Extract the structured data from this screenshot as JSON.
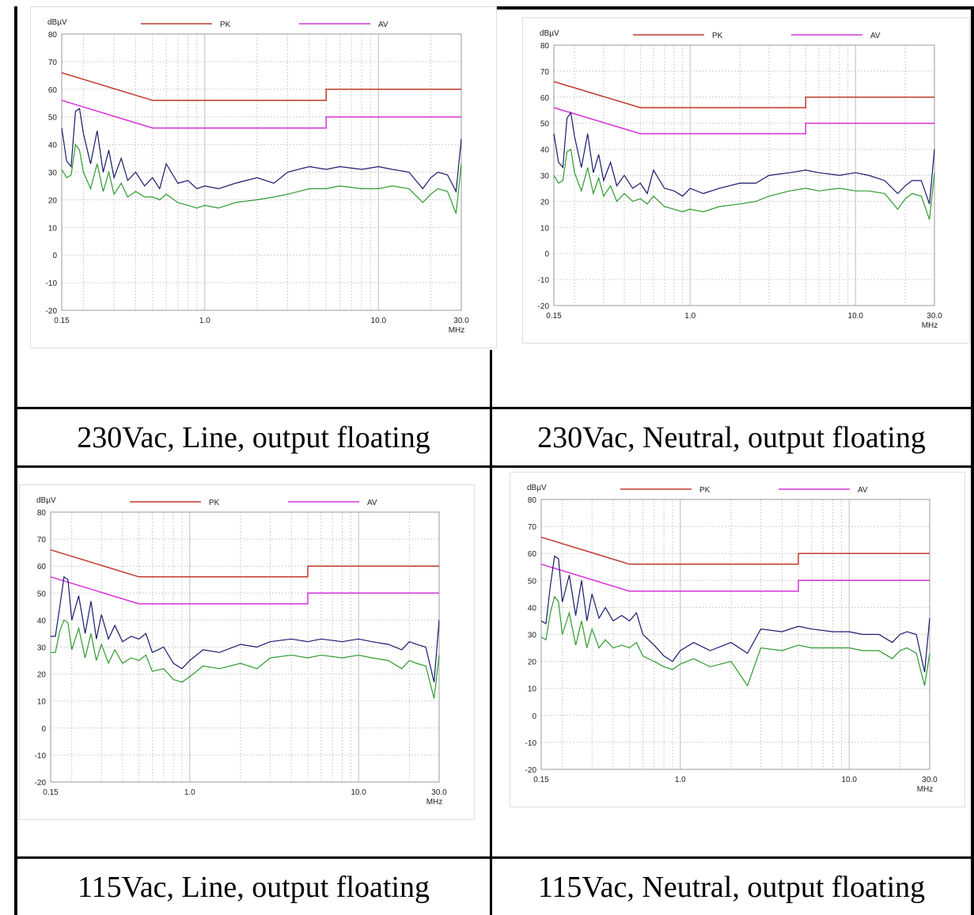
{
  "captions": [
    "230Vac, Line, output floating",
    "230Vac, Neutral, output floating",
    "115Vac, Line, output floating",
    "115Vac, Neutral, output floating"
  ],
  "colors": {
    "pk": "#c0392b",
    "av": "#d633d6",
    "peak_trace": "#1a1a6e",
    "avg_trace": "#2e9a2e",
    "grid": "#cfcfcf"
  },
  "chart_data": [
    {
      "type": "line",
      "caption": "230Vac, Line, output floating",
      "ylabel": "dBµV",
      "xlabel": "MHz",
      "xscale": "log",
      "xlim": [
        0.15,
        30.0
      ],
      "ylim": [
        -20,
        80
      ],
      "yticks": [
        "80",
        "70",
        "60",
        "50",
        "40",
        "30",
        "20",
        "10",
        "0",
        "-10",
        "-20"
      ],
      "xticks": [
        "0.15",
        "1.0",
        "10.0",
        "30.0"
      ],
      "legend": [
        "PK",
        "AV"
      ],
      "series": [
        {
          "name": "PK",
          "x": [
            0.15,
            0.5,
            0.5,
            5,
            5,
            30
          ],
          "y": [
            66,
            56,
            56,
            56,
            60,
            60
          ]
        },
        {
          "name": "AV",
          "x": [
            0.15,
            0.5,
            0.5,
            5,
            5,
            30
          ],
          "y": [
            56,
            46,
            46,
            46,
            50,
            50
          ]
        },
        {
          "name": "",
          "x": [
            0.15,
            0.16,
            0.17,
            0.18,
            0.19,
            0.2,
            0.22,
            0.24,
            0.26,
            0.28,
            0.3,
            0.33,
            0.36,
            0.4,
            0.45,
            0.5,
            0.55,
            0.6,
            0.7,
            0.8,
            0.9,
            1.0,
            1.2,
            1.5,
            2.0,
            2.5,
            3.0,
            4.0,
            5.0,
            6.0,
            8.0,
            10.0,
            12.0,
            15.0,
            18.0,
            20.0,
            22.0,
            25.0,
            28.0,
            30.0
          ],
          "y": [
            46,
            34,
            32,
            52,
            53,
            44,
            33,
            45,
            30,
            38,
            28,
            35,
            27,
            30,
            25,
            28,
            24,
            33,
            26,
            27,
            24,
            25,
            24,
            26,
            28,
            26,
            30,
            32,
            31,
            32,
            31,
            32,
            31,
            30,
            24,
            28,
            30,
            29,
            23,
            42
          ]
        },
        {
          "name": "",
          "x": [
            0.15,
            0.16,
            0.17,
            0.18,
            0.19,
            0.2,
            0.22,
            0.24,
            0.26,
            0.28,
            0.3,
            0.33,
            0.36,
            0.4,
            0.45,
            0.5,
            0.55,
            0.6,
            0.7,
            0.8,
            0.9,
            1.0,
            1.2,
            1.5,
            2.0,
            2.5,
            3.0,
            4.0,
            5.0,
            6.0,
            8.0,
            10.0,
            12.0,
            15.0,
            18.0,
            20.0,
            22.0,
            25.0,
            28.0,
            30.0
          ],
          "y": [
            31,
            28,
            29,
            40,
            38,
            30,
            24,
            33,
            23,
            30,
            22,
            26,
            21,
            23,
            21,
            21,
            20,
            22,
            19,
            18,
            17,
            18,
            17,
            19,
            20,
            21,
            22,
            24,
            24,
            25,
            24,
            24,
            25,
            24,
            19,
            22,
            24,
            23,
            15,
            33
          ]
        }
      ]
    },
    {
      "type": "line",
      "caption": "230Vac, Neutral, output floating",
      "ylabel": "dBµV",
      "xlabel": "MHz",
      "xscale": "log",
      "xlim": [
        0.15,
        30.0
      ],
      "ylim": [
        -20,
        80
      ],
      "yticks": [
        "80",
        "70",
        "60",
        "50",
        "40",
        "30",
        "20",
        "10",
        "0",
        "-10",
        "-20"
      ],
      "xticks": [
        "0.15",
        "1.0",
        "10.0",
        "30.0"
      ],
      "legend": [
        "PK",
        "AV"
      ],
      "series": [
        {
          "name": "PK",
          "x": [
            0.15,
            0.5,
            0.5,
            5,
            5,
            30
          ],
          "y": [
            66,
            56,
            56,
            56,
            60,
            60
          ]
        },
        {
          "name": "AV",
          "x": [
            0.15,
            0.5,
            0.5,
            5,
            5,
            30
          ],
          "y": [
            56,
            46,
            46,
            46,
            50,
            50
          ]
        },
        {
          "name": "",
          "x": [
            0.15,
            0.16,
            0.17,
            0.18,
            0.19,
            0.2,
            0.22,
            0.24,
            0.26,
            0.28,
            0.3,
            0.33,
            0.36,
            0.4,
            0.45,
            0.5,
            0.55,
            0.6,
            0.7,
            0.8,
            0.9,
            1.0,
            1.2,
            1.5,
            2.0,
            2.5,
            3.0,
            4.0,
            5.0,
            6.0,
            8.0,
            10.0,
            12.0,
            15.0,
            18.0,
            20.0,
            22.0,
            25.0,
            28.0,
            30.0
          ],
          "y": [
            46,
            35,
            33,
            52,
            54,
            45,
            33,
            46,
            31,
            38,
            28,
            35,
            26,
            30,
            25,
            27,
            23,
            32,
            25,
            24,
            22,
            25,
            23,
            25,
            27,
            27,
            30,
            31,
            32,
            31,
            30,
            31,
            30,
            28,
            23,
            26,
            28,
            28,
            19,
            40
          ]
        },
        {
          "name": "",
          "x": [
            0.15,
            0.16,
            0.17,
            0.18,
            0.19,
            0.2,
            0.22,
            0.24,
            0.26,
            0.28,
            0.3,
            0.33,
            0.36,
            0.4,
            0.45,
            0.5,
            0.55,
            0.6,
            0.7,
            0.8,
            0.9,
            1.0,
            1.2,
            1.5,
            2.0,
            2.5,
            3.0,
            4.0,
            5.0,
            6.0,
            8.0,
            10.0,
            12.0,
            15.0,
            18.0,
            20.0,
            22.0,
            25.0,
            28.0,
            30.0
          ],
          "y": [
            30,
            27,
            28,
            39,
            40,
            31,
            24,
            33,
            23,
            29,
            22,
            26,
            20,
            23,
            20,
            21,
            19,
            22,
            18,
            17,
            16,
            17,
            16,
            18,
            19,
            20,
            22,
            24,
            25,
            24,
            25,
            24,
            24,
            23,
            17,
            21,
            23,
            22,
            13,
            31
          ]
        }
      ]
    },
    {
      "type": "line",
      "caption": "115Vac, Line, output floating",
      "ylabel": "dBµV",
      "xlabel": "MHz",
      "xscale": "log",
      "xlim": [
        0.15,
        30.0
      ],
      "ylim": [
        -20,
        80
      ],
      "yticks": [
        "80",
        "70",
        "60",
        "50",
        "40",
        "30",
        "20",
        "10",
        "0",
        "-10",
        "-20"
      ],
      "xticks": [
        "0.15",
        "1.0",
        "10.0",
        "30.0"
      ],
      "legend": [
        "PK",
        "AV"
      ],
      "series": [
        {
          "name": "PK",
          "x": [
            0.15,
            0.5,
            0.5,
            5,
            5,
            30
          ],
          "y": [
            66,
            56,
            56,
            56,
            60,
            60
          ]
        },
        {
          "name": "AV",
          "x": [
            0.15,
            0.5,
            0.5,
            5,
            5,
            30
          ],
          "y": [
            56,
            46,
            46,
            46,
            50,
            50
          ]
        },
        {
          "name": "",
          "x": [
            0.15,
            0.16,
            0.17,
            0.18,
            0.19,
            0.2,
            0.22,
            0.24,
            0.26,
            0.28,
            0.3,
            0.33,
            0.36,
            0.4,
            0.45,
            0.5,
            0.55,
            0.6,
            0.7,
            0.8,
            0.9,
            1.0,
            1.2,
            1.5,
            2.0,
            2.5,
            3.0,
            4.0,
            5.0,
            6.0,
            8.0,
            10.0,
            12.0,
            15.0,
            18.0,
            20.0,
            22.0,
            25.0,
            28.0,
            30.0
          ],
          "y": [
            34,
            34,
            45,
            56,
            55,
            40,
            49,
            35,
            47,
            33,
            42,
            33,
            38,
            32,
            34,
            33,
            35,
            28,
            30,
            24,
            22,
            25,
            29,
            28,
            31,
            30,
            32,
            33,
            32,
            33,
            32,
            33,
            32,
            31,
            29,
            32,
            31,
            30,
            17,
            40
          ]
        },
        {
          "name": "",
          "x": [
            0.15,
            0.16,
            0.17,
            0.18,
            0.19,
            0.2,
            0.22,
            0.24,
            0.26,
            0.28,
            0.3,
            0.33,
            0.36,
            0.4,
            0.45,
            0.5,
            0.55,
            0.6,
            0.7,
            0.8,
            0.9,
            1.0,
            1.2,
            1.5,
            2.0,
            2.5,
            3.0,
            4.0,
            5.0,
            6.0,
            8.0,
            10.0,
            12.0,
            15.0,
            18.0,
            20.0,
            22.0,
            25.0,
            28.0,
            30.0
          ],
          "y": [
            28,
            28,
            36,
            40,
            39,
            29,
            37,
            26,
            35,
            25,
            31,
            24,
            29,
            24,
            26,
            25,
            27,
            21,
            22,
            18,
            17,
            19,
            23,
            22,
            24,
            22,
            26,
            27,
            26,
            27,
            26,
            27,
            26,
            25,
            22,
            25,
            24,
            23,
            11,
            27
          ]
        }
      ]
    },
    {
      "type": "line",
      "caption": "115Vac, Neutral, output floating",
      "ylabel": "dBµV",
      "xlabel": "MHz",
      "xscale": "log",
      "xlim": [
        0.15,
        30.0
      ],
      "ylim": [
        -20,
        80
      ],
      "yticks": [
        "80",
        "70",
        "60",
        "50",
        "40",
        "30",
        "20",
        "10",
        "0",
        "-10",
        "-20"
      ],
      "xticks": [
        "0.15",
        "1.0",
        "10.0",
        "30.0"
      ],
      "legend": [
        "PK",
        "AV"
      ],
      "series": [
        {
          "name": "PK",
          "x": [
            0.15,
            0.5,
            0.5,
            5,
            5,
            30
          ],
          "y": [
            66,
            56,
            56,
            56,
            60,
            60
          ]
        },
        {
          "name": "AV",
          "x": [
            0.15,
            0.5,
            0.5,
            5,
            5,
            30
          ],
          "y": [
            56,
            46,
            46,
            46,
            50,
            50
          ]
        },
        {
          "name": "",
          "x": [
            0.15,
            0.16,
            0.17,
            0.18,
            0.19,
            0.2,
            0.22,
            0.24,
            0.26,
            0.28,
            0.3,
            0.33,
            0.36,
            0.4,
            0.45,
            0.5,
            0.55,
            0.6,
            0.7,
            0.8,
            0.9,
            1.0,
            1.2,
            1.5,
            2.0,
            2.5,
            3.0,
            4.0,
            5.0,
            6.0,
            8.0,
            10.0,
            12.0,
            15.0,
            18.0,
            20.0,
            22.0,
            25.0,
            28.0,
            30.0
          ],
          "y": [
            35,
            34,
            48,
            59,
            58,
            42,
            52,
            37,
            50,
            35,
            45,
            36,
            40,
            35,
            37,
            35,
            38,
            30,
            26,
            22,
            20,
            24,
            27,
            24,
            27,
            23,
            32,
            31,
            33,
            32,
            31,
            31,
            30,
            30,
            27,
            30,
            31,
            30,
            16,
            36
          ]
        },
        {
          "name": "",
          "x": [
            0.15,
            0.16,
            0.17,
            0.18,
            0.19,
            0.2,
            0.22,
            0.24,
            0.26,
            0.28,
            0.3,
            0.33,
            0.36,
            0.4,
            0.45,
            0.5,
            0.55,
            0.6,
            0.7,
            0.8,
            0.9,
            1.0,
            1.2,
            1.5,
            2.0,
            2.5,
            3.0,
            4.0,
            5.0,
            6.0,
            8.0,
            10.0,
            12.0,
            15.0,
            18.0,
            20.0,
            22.0,
            25.0,
            28.0,
            30.0
          ],
          "y": [
            29,
            28,
            38,
            44,
            42,
            30,
            38,
            26,
            35,
            25,
            32,
            25,
            28,
            25,
            26,
            25,
            27,
            22,
            20,
            18,
            17,
            19,
            21,
            18,
            20,
            11,
            25,
            24,
            26,
            25,
            25,
            25,
            24,
            24,
            21,
            24,
            25,
            23,
            11,
            23
          ]
        }
      ]
    }
  ]
}
